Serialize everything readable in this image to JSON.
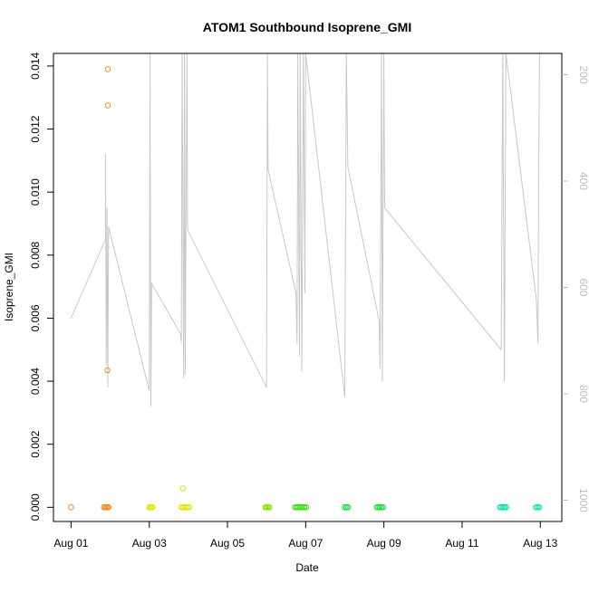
{
  "chart_data": {
    "type": "scatter",
    "title": "ATOM1 Southbound Isoprene_GMI",
    "xlabel": "Date",
    "ylabel": "Isoprene_GMI",
    "x_ticks": [
      "Aug 01",
      "Aug 03",
      "Aug 05",
      "Aug 07",
      "Aug 09",
      "Aug 11",
      "Aug 13"
    ],
    "x_tick_days": [
      1,
      3,
      5,
      7,
      9,
      11,
      13
    ],
    "xlim_days": [
      0.55,
      13.55
    ],
    "y_ticks": [
      "0.000",
      "0.002",
      "0.004",
      "0.006",
      "0.008",
      "0.010",
      "0.012",
      "0.014"
    ],
    "y_tick_values": [
      0,
      0.002,
      0.004,
      0.006,
      0.008,
      0.01,
      0.012,
      0.014
    ],
    "ylim": [
      -0.00045,
      0.0144
    ],
    "right_axis": {
      "ticks": [
        "200",
        "400",
        "600",
        "800",
        "1000"
      ],
      "tick_values": [
        200,
        400,
        600,
        800,
        1000
      ],
      "lim": [
        1040,
        160
      ],
      "color": "#bdbdbd"
    },
    "series": [
      {
        "color": "#f58b1f",
        "points": [
          [
            1.0,
            0
          ],
          [
            1.84,
            0
          ],
          [
            1.87,
            0
          ],
          [
            1.9,
            0
          ],
          [
            1.93,
            0
          ],
          [
            1.96,
            0
          ],
          [
            1.94,
            0.0139
          ],
          [
            1.94,
            0.01275
          ],
          [
            1.93,
            0.00435
          ]
        ]
      },
      {
        "color": "#e4e400",
        "points": [
          [
            3.0,
            0
          ],
          [
            3.03,
            0
          ],
          [
            3.06,
            0
          ],
          [
            3.09,
            0
          ],
          [
            3.82,
            0
          ],
          [
            3.86,
            0
          ],
          [
            3.9,
            0
          ],
          [
            3.94,
            0
          ],
          [
            3.98,
            0
          ],
          [
            4.02,
            0
          ],
          [
            3.86,
            0.0006
          ]
        ]
      },
      {
        "color": "#7fdf00",
        "points": [
          [
            5.97,
            0
          ],
          [
            6.0,
            0
          ],
          [
            6.04,
            0
          ],
          [
            6.07,
            0
          ]
        ]
      },
      {
        "color": "#33e000",
        "points": [
          [
            6.73,
            0
          ],
          [
            6.77,
            0
          ],
          [
            6.81,
            0
          ],
          [
            6.85,
            0
          ],
          [
            6.89,
            0
          ],
          [
            6.93,
            0
          ],
          [
            6.97,
            0
          ],
          [
            7.01,
            0
          ]
        ]
      },
      {
        "color": "#0fe030",
        "points": [
          [
            8.0,
            0
          ],
          [
            8.04,
            0
          ],
          [
            8.08,
            0
          ],
          [
            8.82,
            0
          ],
          [
            8.86,
            0
          ],
          [
            8.9,
            0
          ],
          [
            8.94,
            0
          ],
          [
            8.98,
            0
          ]
        ]
      },
      {
        "color": "#00e0b0",
        "points": [
          [
            11.97,
            0
          ],
          [
            12.01,
            0
          ],
          [
            12.05,
            0
          ],
          [
            12.09,
            0
          ],
          [
            12.13,
            0
          ],
          [
            12.89,
            0
          ],
          [
            12.93,
            0
          ],
          [
            12.97,
            0
          ]
        ]
      }
    ],
    "overlay_line": {
      "color": "#c8c8c8",
      "points": [
        [
          1.0,
          0.006
        ],
        [
          1.88,
          0.0085
        ],
        [
          1.88,
          0.0112
        ],
        [
          1.9,
          0.0045
        ],
        [
          1.92,
          0.0095
        ],
        [
          1.94,
          0.0038
        ],
        [
          1.96,
          0.0089
        ],
        [
          3.0,
          0.0037
        ],
        [
          3.02,
          0.0144
        ],
        [
          3.04,
          0.0032
        ],
        [
          3.06,
          0.0071
        ],
        [
          3.8,
          0.0055
        ],
        [
          3.82,
          0.0052
        ],
        [
          3.84,
          0.0144
        ],
        [
          3.88,
          0.0041
        ],
        [
          3.9,
          0.0144
        ],
        [
          3.92,
          0.0042
        ],
        [
          3.96,
          0.0144
        ],
        [
          3.98,
          0.0088
        ],
        [
          6.0,
          0.0038
        ],
        [
          6.02,
          0.0144
        ],
        [
          6.04,
          0.0107
        ],
        [
          6.75,
          0.0068
        ],
        [
          6.78,
          0.0052
        ],
        [
          6.8,
          0.0144
        ],
        [
          6.84,
          0.0048
        ],
        [
          6.86,
          0.0144
        ],
        [
          6.9,
          0.0043
        ],
        [
          6.94,
          0.0144
        ],
        [
          6.98,
          0.0068
        ],
        [
          7.0,
          0.0144
        ],
        [
          8.0,
          0.0035
        ],
        [
          8.04,
          0.0144
        ],
        [
          8.08,
          0.0108
        ],
        [
          8.88,
          0.0059
        ],
        [
          8.9,
          0.0044
        ],
        [
          8.94,
          0.0144
        ],
        [
          8.96,
          0.004
        ],
        [
          9.0,
          0.0144
        ],
        [
          9.02,
          0.0095
        ],
        [
          12.0,
          0.005
        ],
        [
          12.04,
          0.0144
        ],
        [
          12.08,
          0.004
        ],
        [
          12.12,
          0.0144
        ],
        [
          12.9,
          0.0066
        ],
        [
          12.94,
          0.0052
        ],
        [
          12.96,
          0.0108
        ],
        [
          12.98,
          0.0144
        ]
      ]
    }
  }
}
